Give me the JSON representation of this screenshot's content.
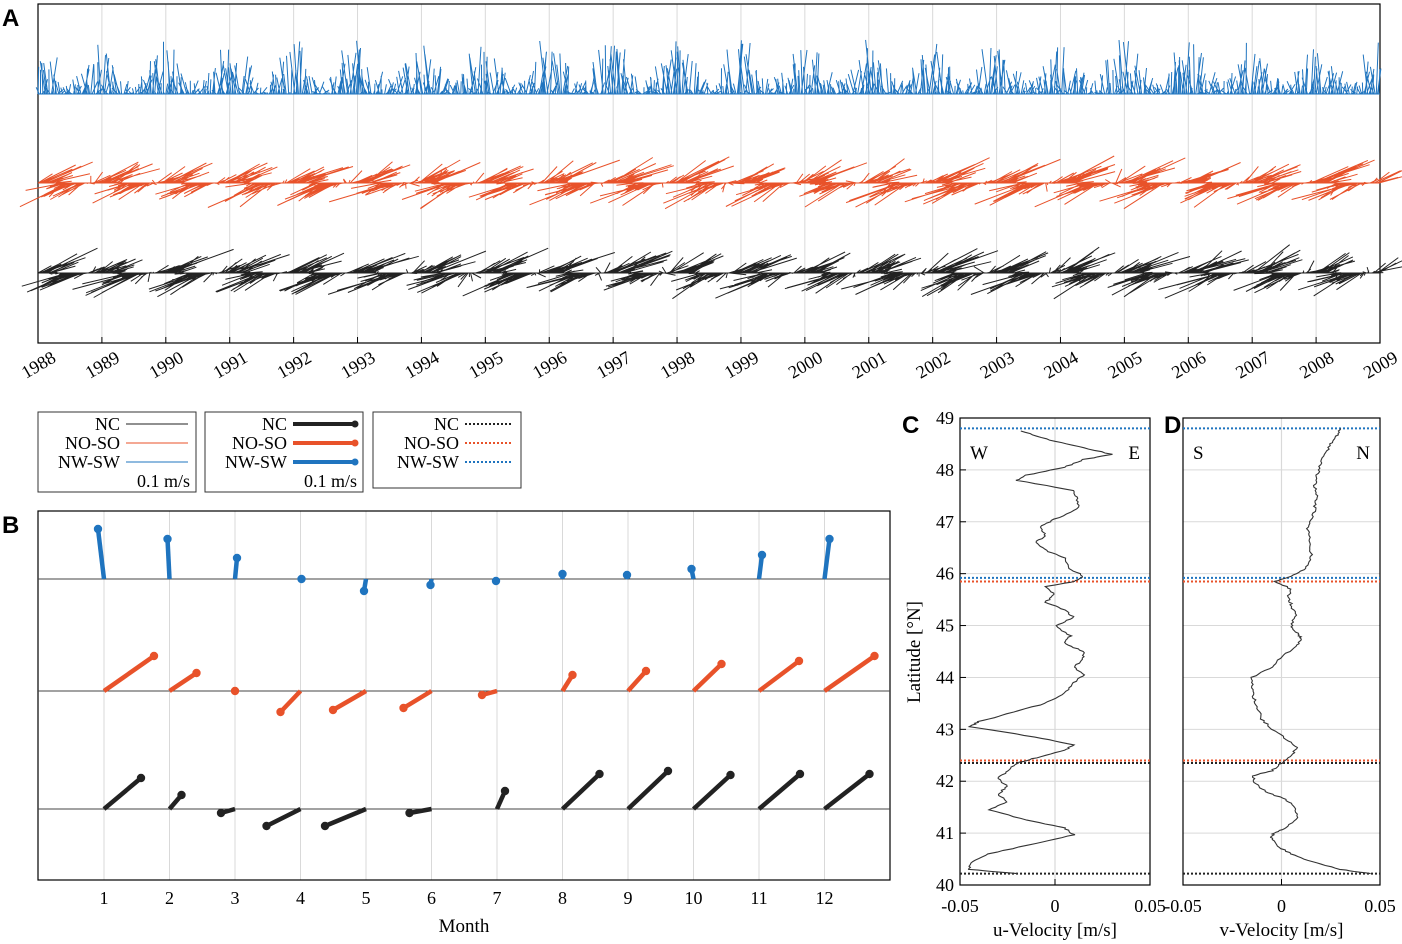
{
  "panels": {
    "a": "A",
    "b": "B",
    "c": "C",
    "d": "D"
  },
  "colors": {
    "NC": "#222222",
    "NO-SO": "#e8522a",
    "NW-SW": "#1f74bf",
    "grid": "#d9d9d9"
  },
  "legends": [
    {
      "entries": [
        "NC",
        "NO-SO",
        "NW-SW"
      ],
      "style": "thin",
      "scale": "0.1 m/s"
    },
    {
      "entries": [
        "NC",
        "NO-SO",
        "NW-SW"
      ],
      "style": "stick",
      "scale": "0.1 m/s"
    },
    {
      "entries": [
        "NC",
        "NO-SO",
        "NW-SW"
      ],
      "style": "dotted"
    }
  ],
  "chart_data": [
    {
      "panel": "A",
      "type": "line",
      "title": "",
      "xlabel": "",
      "x_ticks": [
        "1988",
        "1989",
        "1990",
        "1991",
        "1992",
        "1993",
        "1994",
        "1995",
        "1996",
        "1997",
        "1998",
        "1999",
        "2000",
        "2001",
        "2002",
        "2003",
        "2004",
        "2005",
        "2006",
        "2007",
        "2008",
        "2009"
      ],
      "xlim": [
        1988,
        2009
      ],
      "series": [
        {
          "name": "NW-SW",
          "amp_u": 0.02,
          "amp_v": 0.07,
          "mean_u": 0.0,
          "mean_v": 0.025,
          "seasonal": "max north in Dec-Feb"
        },
        {
          "name": "NO-SO",
          "amp_u": 0.1,
          "amp_v": 0.045,
          "mean_u": 0.02,
          "mean_v": 0.005,
          "seasonal": "northeast Aug-Jan, southwest Apr-Jul"
        },
        {
          "name": "NC",
          "amp_u": 0.1,
          "amp_v": 0.045,
          "mean_u": 0.02,
          "mean_v": 0.005,
          "seasonal": "northeast Aug-Jan, southwest Apr-Jul"
        }
      ]
    },
    {
      "panel": "B",
      "type": "line",
      "xlabel": "Month",
      "categories": [
        "1",
        "2",
        "3",
        "4",
        "5",
        "6",
        "7",
        "8",
        "9",
        "10",
        "11",
        "12"
      ],
      "series": [
        {
          "name": "NW-SW",
          "u": [
            -0.006,
            -0.002,
            0.002,
            0.001,
            -0.002,
            -0.001,
            -0.001,
            0.0,
            -0.001,
            -0.002,
            0.003,
            0.005
          ],
          "v": [
            0.05,
            0.04,
            0.021,
            0.0,
            -0.012,
            -0.006,
            -0.002,
            0.005,
            0.004,
            0.01,
            0.024,
            0.04
          ]
        },
        {
          "name": "NO-SO",
          "u": [
            0.05,
            0.027,
            0.0,
            -0.02,
            -0.033,
            -0.028,
            -0.015,
            0.01,
            0.018,
            0.028,
            0.04,
            0.05
          ],
          "v": [
            0.035,
            0.018,
            0.0,
            -0.021,
            -0.019,
            -0.017,
            -0.004,
            0.016,
            0.02,
            0.027,
            0.03,
            0.035
          ]
        },
        {
          "name": "NC",
          "u": [
            0.037,
            0.012,
            -0.014,
            -0.034,
            -0.041,
            -0.022,
            0.008,
            0.037,
            0.04,
            0.037,
            0.041,
            0.045
          ],
          "v": [
            0.031,
            0.014,
            -0.004,
            -0.017,
            -0.017,
            -0.004,
            0.018,
            0.035,
            0.038,
            0.034,
            0.035,
            0.035
          ]
        }
      ]
    },
    {
      "panel": "C",
      "type": "line",
      "xlabel": "u-Velocity [m/s]",
      "ylabel": "Latitude [°N]",
      "xlim": [
        -0.05,
        0.05
      ],
      "ylim": [
        40,
        49
      ],
      "x_ticks": [
        "-0.05",
        "0",
        "0.05"
      ],
      "y_ticks": [
        "40",
        "41",
        "42",
        "43",
        "44",
        "45",
        "46",
        "47",
        "48",
        "49"
      ],
      "corner_labels": [
        "W",
        "E"
      ],
      "lat": [
        40.22,
        40.3,
        40.42,
        40.6,
        40.8,
        40.97,
        41.1,
        41.25,
        41.45,
        41.6,
        41.75,
        41.9,
        42.05,
        42.2,
        42.35,
        42.45,
        42.6,
        42.7,
        42.85,
        43.05,
        43.15,
        43.3,
        43.5,
        43.7,
        43.9,
        44.05,
        44.2,
        44.35,
        44.5,
        44.65,
        44.8,
        45.0,
        45.15,
        45.3,
        45.45,
        45.6,
        45.75,
        45.85,
        45.95,
        46.1,
        46.3,
        46.45,
        46.6,
        46.75,
        46.9,
        47.05,
        47.25,
        47.45,
        47.6,
        47.8,
        47.9,
        48.05,
        48.2,
        48.3,
        48.45,
        48.6,
        48.75
      ],
      "u": [
        -0.02,
        -0.045,
        -0.045,
        -0.035,
        -0.01,
        0.01,
        0.005,
        -0.015,
        -0.035,
        -0.025,
        -0.03,
        -0.025,
        -0.03,
        -0.025,
        -0.02,
        -0.01,
        0.005,
        0.01,
        -0.01,
        -0.045,
        -0.04,
        -0.025,
        -0.005,
        0.005,
        0.01,
        0.015,
        0.01,
        0.015,
        0.015,
        0.005,
        0.008,
        0.0,
        0.01,
        0.005,
        -0.005,
        0.0,
        -0.005,
        0.01,
        0.015,
        0.008,
        0.005,
        -0.005,
        -0.01,
        -0.005,
        -0.008,
        0.0,
        0.012,
        0.012,
        0.01,
        -0.02,
        -0.015,
        0.005,
        0.015,
        0.03,
        0.012,
        -0.005,
        -0.018
      ]
    },
    {
      "panel": "D",
      "type": "line",
      "xlabel": "v-Velocity [m/s]",
      "xlim": [
        -0.05,
        0.05
      ],
      "ylim": [
        40,
        49
      ],
      "x_ticks": [
        "-0.05",
        "0",
        "0.05"
      ],
      "corner_labels": [
        "S",
        "N"
      ],
      "lat": [
        40.22,
        40.3,
        40.45,
        40.6,
        40.75,
        40.9,
        41.0,
        41.1,
        41.3,
        41.5,
        41.65,
        41.8,
        41.95,
        42.1,
        42.2,
        42.35,
        42.5,
        42.65,
        42.8,
        43.0,
        43.2,
        43.4,
        43.6,
        43.8,
        44.0,
        44.2,
        44.4,
        44.6,
        44.75,
        44.85,
        45.0,
        45.2,
        45.4,
        45.55,
        45.7,
        45.85,
        45.95,
        46.1,
        46.3,
        46.5,
        46.7,
        46.9,
        47.1,
        47.3,
        47.5,
        47.7,
        47.9,
        48.1,
        48.3,
        48.5,
        48.65,
        48.8
      ],
      "v": [
        0.045,
        0.03,
        0.015,
        0.005,
        -0.002,
        -0.005,
        -0.004,
        0.002,
        0.008,
        0.007,
        0.002,
        -0.008,
        -0.013,
        -0.015,
        -0.005,
        0.0,
        0.005,
        0.008,
        0.003,
        -0.005,
        -0.01,
        -0.012,
        -0.014,
        -0.015,
        -0.015,
        -0.005,
        0.0,
        0.008,
        0.01,
        0.008,
        0.005,
        0.007,
        0.005,
        0.003,
        0.005,
        -0.003,
        0.005,
        0.012,
        0.015,
        0.015,
        0.014,
        0.013,
        0.016,
        0.017,
        0.018,
        0.017,
        0.018,
        0.02,
        0.022,
        0.025,
        0.028,
        0.03
      ]
    }
  ],
  "boundaries": [
    {
      "name": "NW-SW",
      "top": 48.8,
      "bottom": 45.92
    },
    {
      "name": "NO-SO",
      "top": 45.85,
      "bottom": 42.4
    },
    {
      "name": "NC",
      "top": 42.35,
      "bottom": 40.22
    }
  ]
}
